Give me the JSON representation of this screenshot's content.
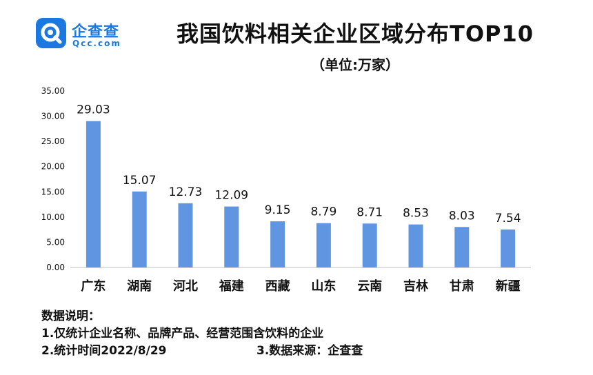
{
  "logo": {
    "icon": "magnifier-q-icon",
    "cn": "企查查",
    "en": "Qcc.com",
    "color": "#1a78e0"
  },
  "title": "我国饮料相关企业区域分布TOP10",
  "unit": "（单位:万家）",
  "chart_data": {
    "type": "bar",
    "categories": [
      "广东",
      "湖南",
      "河北",
      "福建",
      "西藏",
      "山东",
      "云南",
      "吉林",
      "甘肃",
      "新疆"
    ],
    "values": [
      29.03,
      15.07,
      12.73,
      12.09,
      9.15,
      8.79,
      8.71,
      8.53,
      8.03,
      7.54
    ],
    "value_labels": [
      "29.03",
      "15.07",
      "12.73",
      "12.09",
      "9.15",
      "8.79",
      "8.71",
      "8.53",
      "8.03",
      "7.54"
    ],
    "ylim": [
      0,
      35
    ],
    "yticks": [
      "0.00",
      "5.00",
      "10.00",
      "15.00",
      "20.00",
      "25.00",
      "30.00",
      "35.00"
    ],
    "bar_color": "#6095e2",
    "grid": false
  },
  "notes": {
    "heading": "数据说明：",
    "line1": "1.仅统计企业名称、品牌产品、经营范围含饮料的企业",
    "line2a": "2.统计时间2022/8/29",
    "line2b": "3.数据来源：企查查"
  }
}
